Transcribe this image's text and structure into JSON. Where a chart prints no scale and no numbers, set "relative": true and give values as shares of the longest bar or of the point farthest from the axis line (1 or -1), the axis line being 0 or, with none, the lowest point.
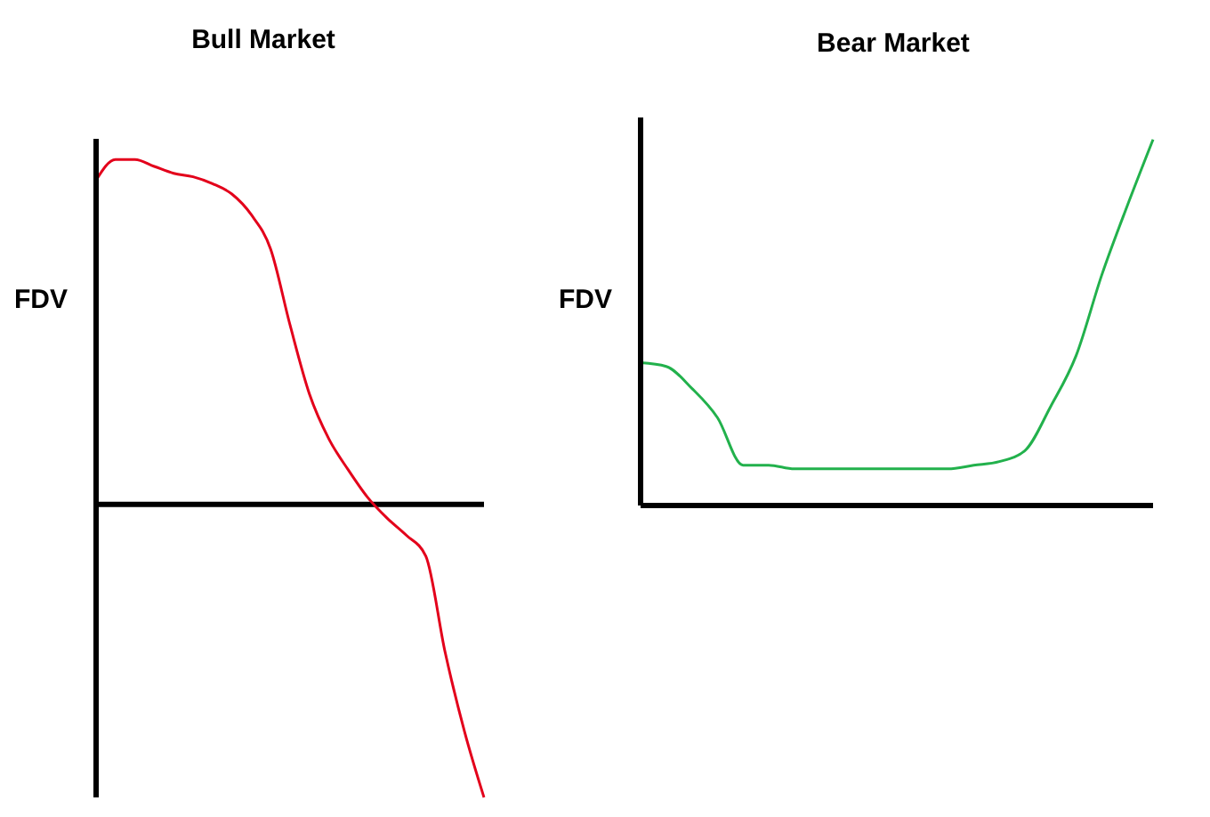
{
  "chart_data": [
    {
      "type": "line",
      "title": "Bull Market",
      "ylabel": "FDV",
      "relative": true,
      "categories": [
        null,
        null,
        null,
        null,
        null,
        null,
        null,
        null,
        null,
        null,
        null,
        null,
        null,
        null,
        null,
        null,
        null,
        null,
        null,
        null,
        null
      ],
      "series": [
        {
          "color": "#e3001b",
          "values": [
            0.94,
            1.0,
            1.0,
            0.98,
            0.96,
            0.95,
            0.93,
            0.9,
            0.84,
            0.74,
            0.52,
            0.32,
            0.19,
            0.1,
            0.02,
            -0.04,
            -0.09,
            -0.15,
            -0.43,
            -0.66,
            -0.85
          ]
        }
      ]
    },
    {
      "type": "line",
      "title": "Bear Market",
      "ylabel": "FDV",
      "relative": true,
      "categories": [
        null,
        null,
        null,
        null,
        null,
        null,
        null,
        null,
        null,
        null,
        null,
        null,
        null,
        null,
        null,
        null,
        null,
        null,
        null,
        null,
        null
      ],
      "series": [
        {
          "color": "#22b14c",
          "values": [
            0.39,
            0.38,
            0.32,
            0.24,
            0.11,
            0.11,
            0.1,
            0.1,
            0.1,
            0.1,
            0.1,
            0.1,
            0.1,
            0.11,
            0.12,
            0.15,
            0.27,
            0.41,
            0.63,
            0.82,
            1.0
          ]
        }
      ]
    }
  ]
}
